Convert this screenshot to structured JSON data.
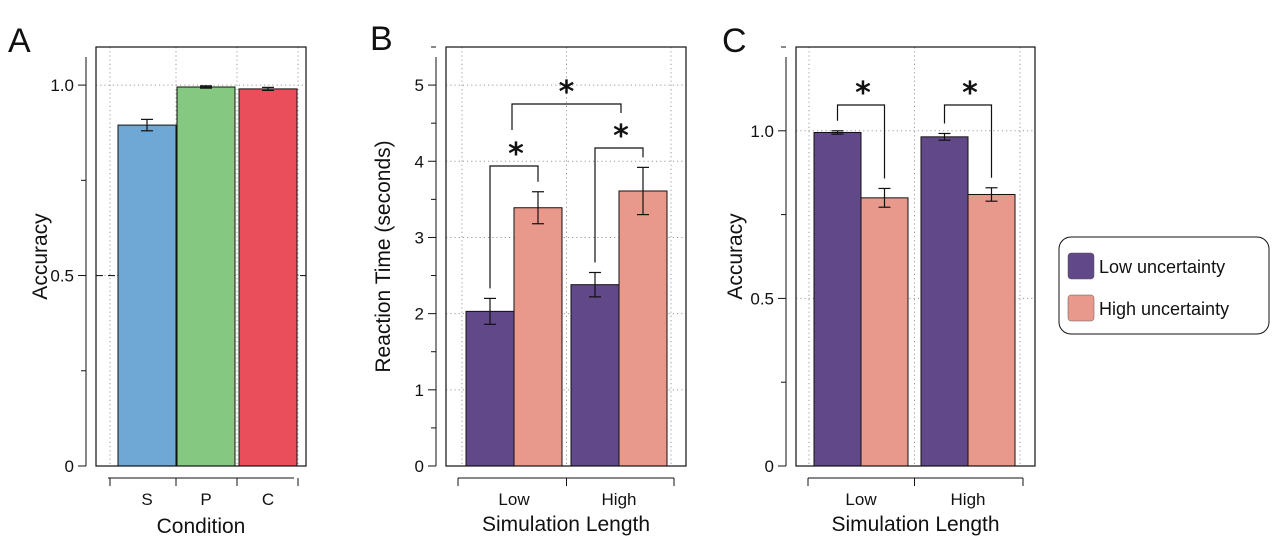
{
  "chart_data": [
    {
      "panel": "A",
      "type": "bar",
      "categories": [
        "S",
        "P",
        "C"
      ],
      "values": [
        0.895,
        0.995,
        0.99
      ],
      "errors": [
        0.015,
        0.003,
        0.004
      ],
      "colors": [
        "#6fa8d5",
        "#85c881",
        "#ea4e5a"
      ],
      "xlabel": "Condition",
      "ylabel": "Accuracy",
      "ylim": [
        0,
        1.1
      ],
      "yticks": [
        0,
        0.5,
        1.0
      ],
      "ytick_labels": [
        "0",
        "0.5",
        "1.0"
      ],
      "reference_line": 0.5,
      "grid": true
    },
    {
      "panel": "B",
      "type": "bar",
      "categories": [
        "Low",
        "High"
      ],
      "series": [
        {
          "name": "Low uncertainty",
          "values": [
            2.03,
            2.38
          ],
          "errors": [
            0.17,
            0.16
          ],
          "color": "#614889"
        },
        {
          "name": "High uncertainty",
          "values": [
            3.39,
            3.61
          ],
          "errors": [
            0.21,
            0.31
          ],
          "color": "#e8998b"
        }
      ],
      "xlabel": "Simulation Length",
      "ylabel": "Reaction Time (seconds)",
      "ylim": [
        0,
        5.5
      ],
      "yticks": [
        0,
        1,
        2,
        3,
        4,
        5
      ],
      "ytick_labels": [
        "0",
        "1",
        "2",
        "3",
        "4",
        "5"
      ],
      "grid": true,
      "significance": [
        {
          "label": "*",
          "type": "within",
          "category": 0
        },
        {
          "label": "*",
          "type": "within",
          "category": 1
        },
        {
          "label": "*",
          "type": "between"
        }
      ]
    },
    {
      "panel": "C",
      "type": "bar",
      "categories": [
        "Low",
        "High"
      ],
      "series": [
        {
          "name": "Low uncertainty",
          "values": [
            0.995,
            0.982
          ],
          "errors": [
            0.005,
            0.01
          ],
          "color": "#614889"
        },
        {
          "name": "High uncertainty",
          "values": [
            0.8,
            0.81
          ],
          "errors": [
            0.028,
            0.02
          ],
          "color": "#e8998b"
        }
      ],
      "xlabel": "Simulation Length",
      "ylabel": "Accuracy",
      "ylim": [
        0,
        1.25
      ],
      "yticks": [
        0,
        0.5,
        1.0
      ],
      "ytick_labels": [
        "0",
        "0.5",
        "1.0"
      ],
      "grid": true,
      "significance": [
        {
          "label": "*",
          "type": "within",
          "category": 0
        },
        {
          "label": "*",
          "type": "within",
          "category": 1
        }
      ]
    }
  ],
  "legend": {
    "placement": "right",
    "entries": [
      {
        "label": "Low uncertainty",
        "color": "#614889"
      },
      {
        "label": "High uncertainty",
        "color": "#e8998b"
      }
    ]
  }
}
